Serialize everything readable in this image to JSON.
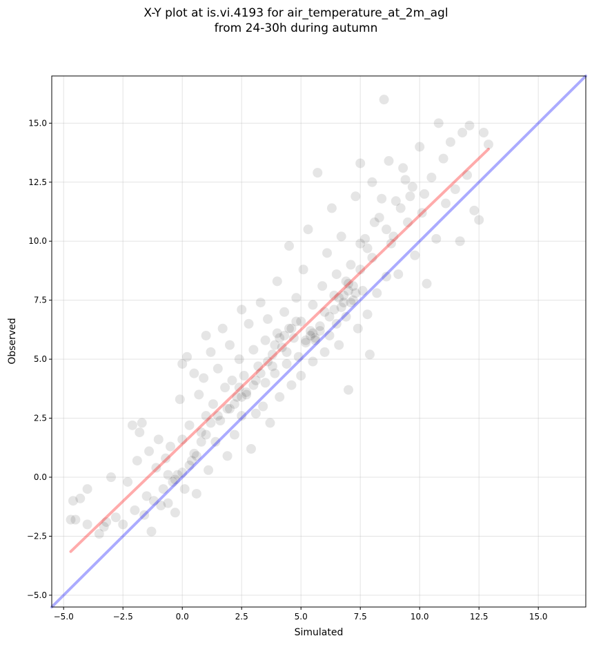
{
  "chart_data": {
    "type": "scatter",
    "title_line1": "X-Y plot at is.vi.4193 for air_temperature_at_2m_agl",
    "title_line2": "from 24-30h during autumn",
    "xlabel": "Simulated",
    "ylabel": "Observed",
    "xlim": [
      -5.5,
      17.0
    ],
    "ylim": [
      -5.5,
      17.0
    ],
    "x_ticks": [
      -5.0,
      -2.5,
      0.0,
      2.5,
      5.0,
      7.5,
      10.0,
      12.5,
      15.0
    ],
    "y_ticks": [
      -5.0,
      -2.5,
      0.0,
      2.5,
      5.0,
      7.5,
      10.0,
      12.5,
      15.0
    ],
    "grid": true,
    "point_color": "#000000",
    "identity_line": {
      "color": "#0000ff",
      "x": [
        -5.5,
        17.0
      ],
      "y": [
        -5.5,
        17.0
      ]
    },
    "fit_line": {
      "color": "#ff0000",
      "x": [
        -4.7,
        12.9
      ],
      "y": [
        -3.15,
        13.9
      ]
    },
    "points": [
      [
        -4.7,
        -1.8
      ],
      [
        -4.6,
        -1.0
      ],
      [
        -4.5,
        -1.8
      ],
      [
        -4.3,
        -0.9
      ],
      [
        -4.0,
        -2.0
      ],
      [
        -4.0,
        -0.5
      ],
      [
        -3.5,
        -2.4
      ],
      [
        -3.3,
        -2.1
      ],
      [
        -3.2,
        -1.9
      ],
      [
        -3.0,
        -0.0
      ],
      [
        -2.8,
        -1.7
      ],
      [
        -2.5,
        -2.0
      ],
      [
        -2.3,
        -0.2
      ],
      [
        -2.1,
        2.2
      ],
      [
        -2.0,
        -1.4
      ],
      [
        -1.9,
        0.7
      ],
      [
        -1.8,
        1.9
      ],
      [
        -1.7,
        2.3
      ],
      [
        -1.6,
        -1.6
      ],
      [
        -1.5,
        -0.8
      ],
      [
        -1.4,
        1.1
      ],
      [
        -1.3,
        -2.3
      ],
      [
        -1.2,
        -1.0
      ],
      [
        -1.1,
        0.4
      ],
      [
        -1.0,
        1.6
      ],
      [
        -0.9,
        -1.2
      ],
      [
        -0.8,
        -0.5
      ],
      [
        -0.7,
        0.8
      ],
      [
        -0.6,
        -1.1
      ],
      [
        -0.5,
        1.3
      ],
      [
        -0.4,
        -0.2
      ],
      [
        -0.3,
        -1.5
      ],
      [
        -0.2,
        0.1
      ],
      [
        -0.1,
        3.3
      ],
      [
        0.0,
        4.8
      ],
      [
        0.0,
        1.6
      ],
      [
        0.1,
        -0.5
      ],
      [
        0.2,
        5.1
      ],
      [
        0.3,
        2.2
      ],
      [
        0.4,
        0.7
      ],
      [
        0.5,
        4.4
      ],
      [
        0.6,
        -0.7
      ],
      [
        0.7,
        3.5
      ],
      [
        0.8,
        1.9
      ],
      [
        0.9,
        4.2
      ],
      [
        1.0,
        6.0
      ],
      [
        1.0,
        2.6
      ],
      [
        1.1,
        0.3
      ],
      [
        1.2,
        5.3
      ],
      [
        1.3,
        3.1
      ],
      [
        1.4,
        1.5
      ],
      [
        1.5,
        4.6
      ],
      [
        1.6,
        2.4
      ],
      [
        1.7,
        6.3
      ],
      [
        1.8,
        3.8
      ],
      [
        1.9,
        0.9
      ],
      [
        2.0,
        5.6
      ],
      [
        2.0,
        2.9
      ],
      [
        2.1,
        4.1
      ],
      [
        2.2,
        1.8
      ],
      [
        2.3,
        3.4
      ],
      [
        2.4,
        5.0
      ],
      [
        2.5,
        7.1
      ],
      [
        2.5,
        2.6
      ],
      [
        2.6,
        4.3
      ],
      [
        2.7,
        3.6
      ],
      [
        2.8,
        6.5
      ],
      [
        2.9,
        1.2
      ],
      [
        3.0,
        3.9
      ],
      [
        3.0,
        5.4
      ],
      [
        3.1,
        2.7
      ],
      [
        3.2,
        4.7
      ],
      [
        3.3,
        7.4
      ],
      [
        3.4,
        3.0
      ],
      [
        3.5,
        5.8
      ],
      [
        3.5,
        4.0
      ],
      [
        3.6,
        6.7
      ],
      [
        3.7,
        2.3
      ],
      [
        3.8,
        5.2
      ],
      [
        3.9,
        4.4
      ],
      [
        4.0,
        8.3
      ],
      [
        4.0,
        6.1
      ],
      [
        4.1,
        3.4
      ],
      [
        4.2,
        5.5
      ],
      [
        4.3,
        7.0
      ],
      [
        4.4,
        4.8
      ],
      [
        4.5,
        6.3
      ],
      [
        4.5,
        9.8
      ],
      [
        4.6,
        3.9
      ],
      [
        4.7,
        5.9
      ],
      [
        4.8,
        7.6
      ],
      [
        4.9,
        5.1
      ],
      [
        5.0,
        6.6
      ],
      [
        5.0,
        4.3
      ],
      [
        5.1,
        8.8
      ],
      [
        5.2,
        5.7
      ],
      [
        5.3,
        10.5
      ],
      [
        5.4,
        6.2
      ],
      [
        5.5,
        4.9
      ],
      [
        5.5,
        7.3
      ],
      [
        5.6,
        5.8
      ],
      [
        5.7,
        12.9
      ],
      [
        5.8,
        6.4
      ],
      [
        5.9,
        8.1
      ],
      [
        6.0,
        5.3
      ],
      [
        6.0,
        7.0
      ],
      [
        6.1,
        9.5
      ],
      [
        6.2,
        6.0
      ],
      [
        6.3,
        11.4
      ],
      [
        6.4,
        7.7
      ],
      [
        6.5,
        6.5
      ],
      [
        6.5,
        8.6
      ],
      [
        6.6,
        5.6
      ],
      [
        6.7,
        10.2
      ],
      [
        6.8,
        7.4
      ],
      [
        6.9,
        6.8
      ],
      [
        7.0,
        8.2
      ],
      [
        7.0,
        3.7
      ],
      [
        7.1,
        9.0
      ],
      [
        7.2,
        7.5
      ],
      [
        7.3,
        11.9
      ],
      [
        7.4,
        6.3
      ],
      [
        7.5,
        8.8
      ],
      [
        7.5,
        13.3
      ],
      [
        7.6,
        7.9
      ],
      [
        7.7,
        10.1
      ],
      [
        7.8,
        6.9
      ],
      [
        7.9,
        5.2
      ],
      [
        8.0,
        12.5
      ],
      [
        8.0,
        9.3
      ],
      [
        8.2,
        7.8
      ],
      [
        8.3,
        11.0
      ],
      [
        8.5,
        16.0
      ],
      [
        8.6,
        8.5
      ],
      [
        8.7,
        13.4
      ],
      [
        8.8,
        9.9
      ],
      [
        9.0,
        11.7
      ],
      [
        9.1,
        8.6
      ],
      [
        9.3,
        13.1
      ],
      [
        9.5,
        10.8
      ],
      [
        9.7,
        12.3
      ],
      [
        9.8,
        9.4
      ],
      [
        10.0,
        14.0
      ],
      [
        10.1,
        11.2
      ],
      [
        10.3,
        8.2
      ],
      [
        10.5,
        12.7
      ],
      [
        10.7,
        10.1
      ],
      [
        10.8,
        15.0
      ],
      [
        11.0,
        13.5
      ],
      [
        11.1,
        11.6
      ],
      [
        11.3,
        14.2
      ],
      [
        11.5,
        12.2
      ],
      [
        11.7,
        10.0
      ],
      [
        11.8,
        14.6
      ],
      [
        12.0,
        12.8
      ],
      [
        12.1,
        14.9
      ],
      [
        12.3,
        11.3
      ],
      [
        12.5,
        10.9
      ],
      [
        12.7,
        14.6
      ],
      [
        12.9,
        14.1
      ],
      [
        6.8,
        7.7
      ],
      [
        7.0,
        7.9
      ],
      [
        7.2,
        8.1
      ],
      [
        6.6,
        7.6
      ],
      [
        7.1,
        7.4
      ],
      [
        5.4,
        6.0
      ],
      [
        5.6,
        5.9
      ],
      [
        5.2,
        5.8
      ],
      [
        5.5,
        6.1
      ],
      [
        5.8,
        6.2
      ],
      [
        4.6,
        6.3
      ],
      [
        4.8,
        6.6
      ],
      [
        4.3,
        6.0
      ],
      [
        3.9,
        5.6
      ],
      [
        4.1,
        5.9
      ],
      [
        2.5,
        3.4
      ],
      [
        2.2,
        3.1
      ],
      [
        2.7,
        3.5
      ],
      [
        1.9,
        2.9
      ],
      [
        2.4,
        3.8
      ],
      [
        6.2,
        6.8
      ],
      [
        6.4,
        7.1
      ],
      [
        6.9,
        8.3
      ],
      [
        7.3,
        7.8
      ],
      [
        6.7,
        7.2
      ],
      [
        3.3,
        4.4
      ],
      [
        3.6,
        4.9
      ],
      [
        3.1,
        4.1
      ],
      [
        3.8,
        4.7
      ],
      [
        4.4,
        5.3
      ],
      [
        1.0,
        1.8
      ],
      [
        1.2,
        2.3
      ],
      [
        0.8,
        1.5
      ],
      [
        1.5,
        2.6
      ],
      [
        0.5,
        1.0
      ],
      [
        -0.3,
        -0.1
      ],
      [
        0.0,
        0.2
      ],
      [
        -0.6,
        0.1
      ],
      [
        0.3,
        0.5
      ],
      [
        0.6,
        0.9
      ],
      [
        8.6,
        10.5
      ],
      [
        8.9,
        10.2
      ],
      [
        9.2,
        11.4
      ],
      [
        9.6,
        11.9
      ],
      [
        10.2,
        12.0
      ],
      [
        7.8,
        9.7
      ],
      [
        8.1,
        10.8
      ],
      [
        7.5,
        9.9
      ],
      [
        8.4,
        11.8
      ],
      [
        9.4,
        12.6
      ]
    ]
  }
}
